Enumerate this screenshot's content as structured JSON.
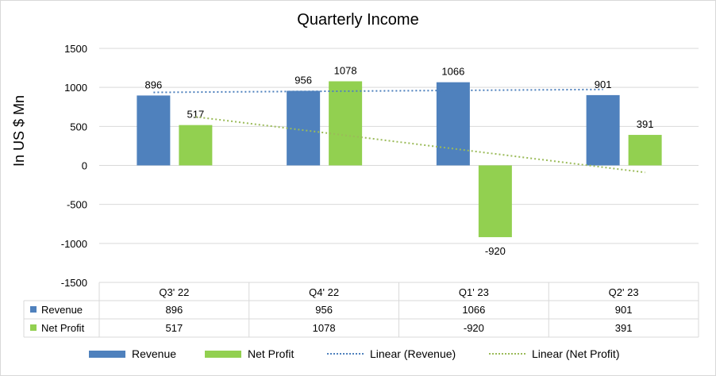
{
  "chart_data": {
    "type": "bar",
    "title": "Quarterly Income",
    "ylabel": "In US $ Mn",
    "xlabel": "",
    "categories": [
      "Q3' 22",
      "Q4' 22",
      "Q1' 23",
      "Q2' 23"
    ],
    "ylim": [
      -1500,
      1500
    ],
    "yticks": [
      1500,
      1000,
      500,
      0,
      -500,
      -1000,
      -1500
    ],
    "series": [
      {
        "name": "Revenue",
        "values": [
          896,
          956,
          1066,
          901
        ],
        "color": "#4f81bd"
      },
      {
        "name": "Net Profit",
        "values": [
          517,
          1078,
          -920,
          391
        ],
        "color": "#92d050"
      }
    ],
    "trendlines": [
      {
        "name": "Linear (Revenue)",
        "of": "Revenue",
        "color": "#4f81bd",
        "style": "dotted"
      },
      {
        "name": "Linear (Net Profit)",
        "of": "Net Profit",
        "color": "#9bbb59",
        "style": "dotted"
      }
    ],
    "data_table": true,
    "grid": true,
    "legend_position": "bottom"
  }
}
